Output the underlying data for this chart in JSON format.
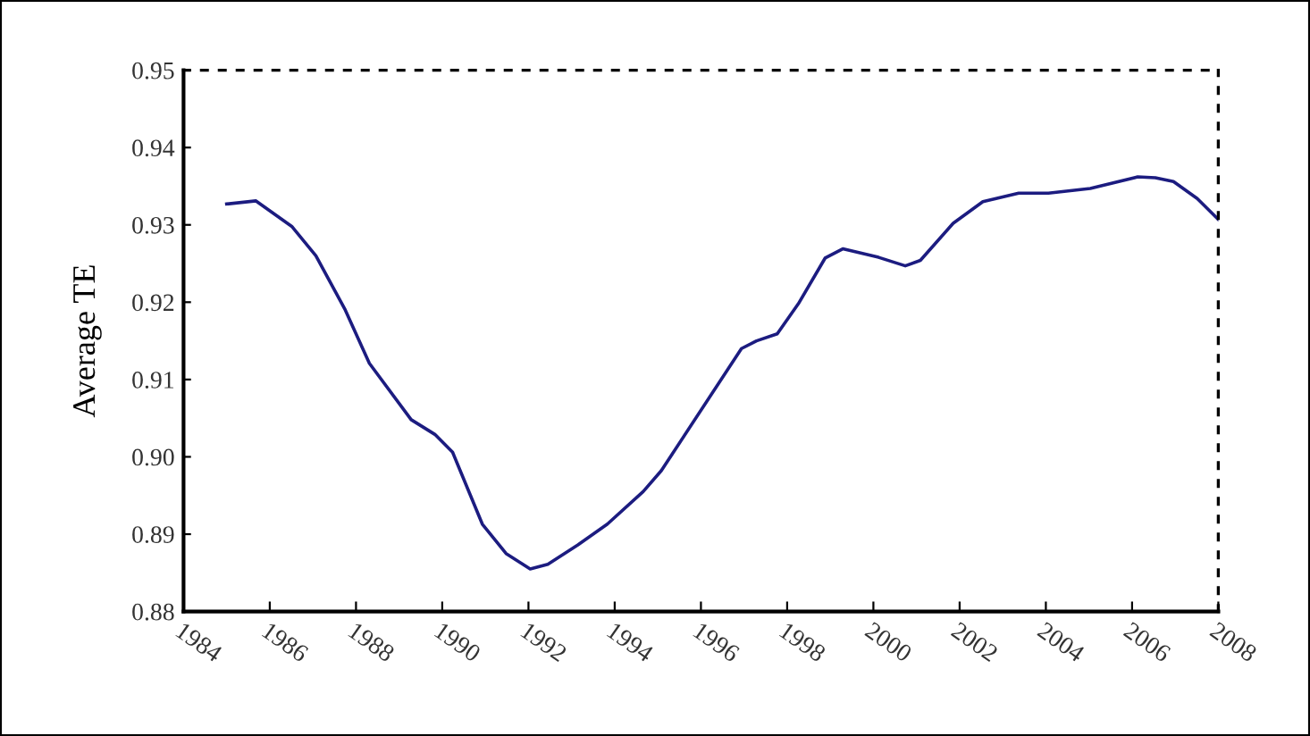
{
  "chart_data": {
    "type": "line",
    "ylabel": "Average TE",
    "x": [
      1985.0,
      1985.68,
      1986.51,
      1987.07,
      1987.75,
      1988.31,
      1989.28,
      1989.83,
      1990.24,
      1990.93,
      1991.48,
      1992.04,
      1992.45,
      1993.14,
      1993.83,
      1994.66,
      1995.08,
      1996.94,
      1997.29,
      1997.77,
      1998.26,
      1998.88,
      1999.29,
      2000.12,
      2000.74,
      2001.09,
      2001.85,
      2002.54,
      2003.37,
      2004.06,
      2005.03,
      2006.13,
      2006.54,
      2006.96,
      2007.51,
      2008.0
    ],
    "series": [
      {
        "color": "#1c1c80",
        "values": [
          0.9327,
          0.9331,
          0.9298,
          0.926,
          0.919,
          0.9121,
          0.9048,
          0.9029,
          0.9006,
          0.8913,
          0.8875,
          0.8855,
          0.8861,
          0.8886,
          0.8913,
          0.8955,
          0.8982,
          0.914,
          0.915,
          0.9159,
          0.9198,
          0.9257,
          0.9269,
          0.9258,
          0.9247,
          0.9254,
          0.9302,
          0.933,
          0.9341,
          0.9341,
          0.9347,
          0.9362,
          0.9361,
          0.9356,
          0.9334,
          0.9307
        ]
      }
    ],
    "xlim": [
      1984,
      2008
    ],
    "xticks": [
      1984,
      1986,
      1988,
      1990,
      1992,
      1994,
      1996,
      1998,
      2000,
      2002,
      2004,
      2006,
      2008
    ],
    "ylim": [
      0.88,
      0.95
    ],
    "yticks": [
      {
        "value": 0.88,
        "label": "0.88"
      },
      {
        "value": 0.89,
        "label": "0.89"
      },
      {
        "value": 0.9,
        "label": "0.90"
      },
      {
        "value": 0.91,
        "label": "0.91"
      },
      {
        "value": 0.92,
        "label": "0.92"
      },
      {
        "value": 0.93,
        "label": "0.93"
      },
      {
        "value": 0.94,
        "label": "0.94"
      },
      {
        "value": 0.95,
        "label": "0.95"
      }
    ],
    "grid": false,
    "legend": false,
    "marker": "none",
    "line_style": "solid"
  }
}
